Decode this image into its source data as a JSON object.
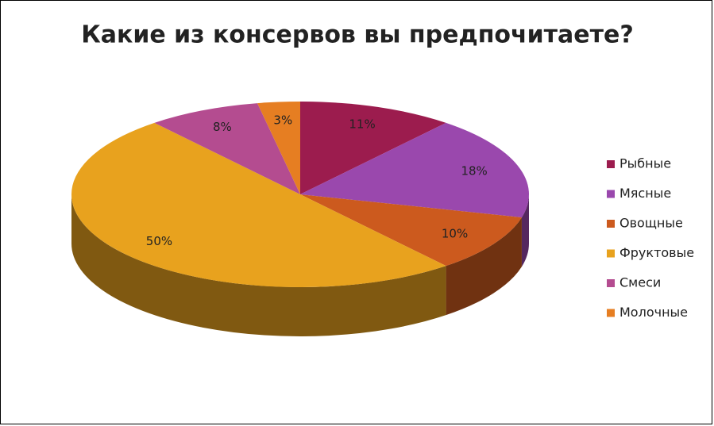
{
  "chart_data": {
    "type": "pie3d",
    "title": "Какие из консервов вы предпочитаете?",
    "categories": [
      "Рыбные",
      "Мясные",
      "Овощные",
      "Фруктовые",
      "Смеси",
      "Молочные"
    ],
    "values": [
      11,
      18,
      10,
      50,
      8,
      3
    ],
    "value_labels": [
      "11%",
      "18%",
      "10%",
      "50%",
      "8%",
      "3%"
    ],
    "colors": [
      "#9c1c4e",
      "#9a48ad",
      "#cc5a1e",
      "#e8a21e",
      "#b44c90",
      "#e67e22"
    ],
    "legend": "right"
  }
}
